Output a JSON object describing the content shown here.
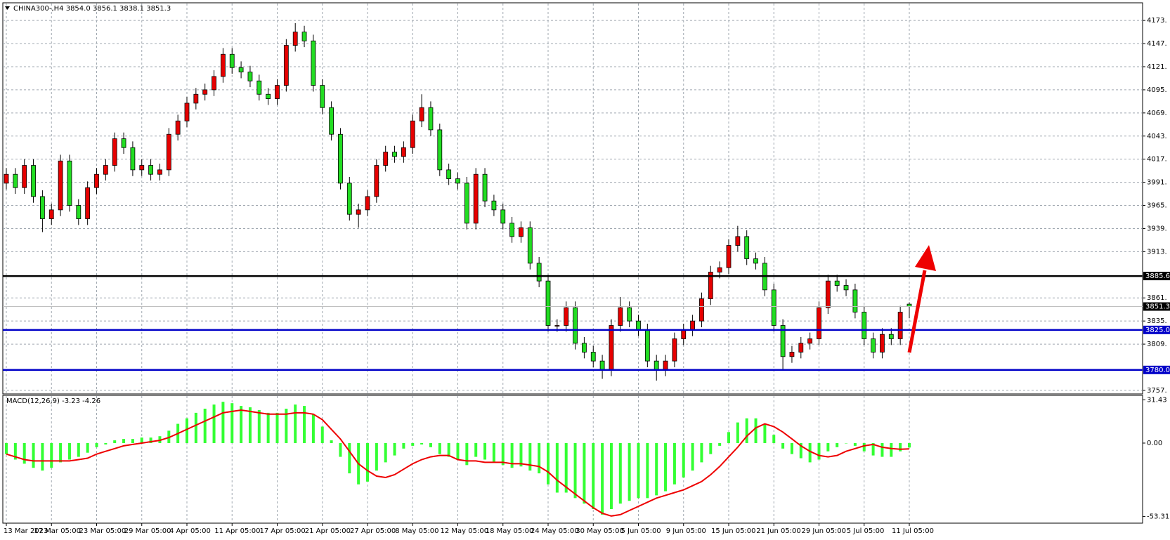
{
  "chart_data": {
    "type": "candlestick",
    "title": "CHINA300-,H4 3854.0 3856.1 3838.1 3851.3",
    "categories": [
      "13 Mar 2023",
      null,
      null,
      null,
      null,
      "17 Mar 05:00",
      null,
      null,
      null,
      null,
      "23 Mar 05:00",
      null,
      null,
      null,
      null,
      "29 Mar 05:00",
      null,
      null,
      null,
      null,
      "4 Apr 05:00",
      null,
      null,
      null,
      null,
      "11 Apr 05:00",
      null,
      null,
      null,
      null,
      "17 Apr 05:00",
      null,
      null,
      null,
      null,
      "21 Apr 05:00",
      null,
      null,
      null,
      null,
      "27 Apr 05:00",
      null,
      null,
      null,
      null,
      "8 May 05:00",
      null,
      null,
      null,
      null,
      "12 May 05:00",
      null,
      null,
      null,
      null,
      "18 May 05:00",
      null,
      null,
      null,
      null,
      "24 May 05:00",
      null,
      null,
      null,
      null,
      "30 May 05:00",
      null,
      null,
      null,
      null,
      "5 Jun 05:00",
      null,
      null,
      null,
      null,
      "9 Jun 05:00",
      null,
      null,
      null,
      null,
      "15 Jun 05:00",
      null,
      null,
      null,
      null,
      "21 Jun 05:00",
      null,
      null,
      null,
      null,
      "29 Jun 05:00",
      null,
      null,
      null,
      null,
      "5 Jul 05:00",
      null,
      null,
      null,
      null,
      "11 Jul 05:00"
    ],
    "open": [
      3990,
      4000,
      3985,
      4010,
      3975,
      3950,
      3960,
      4015,
      3965,
      3950,
      3985,
      4000,
      4010,
      4040,
      4030,
      4005,
      4010,
      4000,
      4005,
      4045,
      4060,
      4080,
      4090,
      4095,
      4110,
      4135,
      4120,
      4115,
      4105,
      4090,
      4085,
      4100,
      4145,
      4160,
      4150,
      4100,
      4075,
      4045,
      3990,
      3955,
      3960,
      3975,
      4010,
      4025,
      4020,
      4030,
      4060,
      4075,
      4050,
      4005,
      3995,
      3990,
      3945,
      4000,
      3970,
      3960,
      3945,
      3930,
      3940,
      3900,
      3880,
      3830,
      3830,
      3850,
      3810,
      3800,
      3790,
      3780,
      3830,
      3850,
      3835,
      3825,
      3790,
      3780,
      3790,
      3815,
      3825,
      3835,
      3860,
      3890,
      3895,
      3920,
      3930,
      3905,
      3900,
      3870,
      3830,
      3795,
      3800,
      3810,
      3815,
      3850,
      3880,
      3875,
      3870,
      3845,
      3815,
      3800,
      3820,
      3815,
      3854.0
    ],
    "high": [
      4007,
      4007,
      4017,
      4017,
      3982,
      3967,
      4022,
      4022,
      3972,
      3992,
      4007,
      4017,
      4047,
      4047,
      4037,
      4017,
      4017,
      4012,
      4052,
      4067,
      4087,
      4097,
      4102,
      4117,
      4142,
      4142,
      4127,
      4122,
      4112,
      4097,
      4107,
      4152,
      4170,
      4167,
      4157,
      4107,
      4082,
      4052,
      3997,
      3967,
      3982,
      4017,
      4032,
      4032,
      4037,
      4067,
      4090,
      4082,
      4057,
      4012,
      4002,
      3997,
      4007,
      4007,
      3977,
      3967,
      3952,
      3947,
      3947,
      3907,
      3887,
      3837,
      3857,
      3857,
      3817,
      3807,
      3797,
      3837,
      3862,
      3857,
      3842,
      3832,
      3797,
      3797,
      3822,
      3832,
      3842,
      3867,
      3897,
      3902,
      3927,
      3942,
      3937,
      3912,
      3907,
      3877,
      3837,
      3807,
      3817,
      3822,
      3857,
      3887,
      3887,
      3882,
      3877,
      3852,
      3822,
      3827,
      3827,
      3852,
      3856.1
    ],
    "low": [
      3983,
      3978,
      3978,
      3968,
      3935,
      3943,
      3953,
      3958,
      3943,
      3943,
      3978,
      3993,
      4003,
      4023,
      3998,
      3998,
      3993,
      3993,
      3998,
      4038,
      4053,
      4073,
      4083,
      4088,
      4103,
      4113,
      4108,
      4098,
      4083,
      4078,
      4078,
      4093,
      4138,
      4143,
      4093,
      4068,
      4038,
      3983,
      3948,
      3940,
      3953,
      3968,
      4003,
      4013,
      4013,
      4023,
      4053,
      4043,
      3998,
      3988,
      3983,
      3938,
      3938,
      3963,
      3953,
      3938,
      3923,
      3923,
      3893,
      3873,
      3823,
      3823,
      3823,
      3803,
      3793,
      3783,
      3770,
      3773,
      3823,
      3828,
      3818,
      3783,
      3768,
      3773,
      3783,
      3808,
      3818,
      3828,
      3853,
      3883,
      3888,
      3913,
      3898,
      3893,
      3863,
      3823,
      3780,
      3788,
      3793,
      3803,
      3808,
      3843,
      3868,
      3863,
      3838,
      3808,
      3793,
      3793,
      3808,
      3808,
      3838.1
    ],
    "close": [
      4000,
      3985,
      4010,
      3975,
      3950,
      3960,
      4015,
      3965,
      3950,
      3985,
      4000,
      4010,
      4040,
      4030,
      4005,
      4010,
      4000,
      4005,
      4045,
      4060,
      4080,
      4090,
      4095,
      4110,
      4135,
      4120,
      4115,
      4105,
      4090,
      4085,
      4100,
      4145,
      4160,
      4150,
      4100,
      4075,
      4045,
      3990,
      3955,
      3960,
      3975,
      4010,
      4025,
      4020,
      4030,
      4060,
      4075,
      4050,
      4005,
      3995,
      3990,
      3945,
      4000,
      3970,
      3960,
      3945,
      3930,
      3940,
      3900,
      3880,
      3830,
      3830,
      3850,
      3810,
      3800,
      3790,
      3780,
      3830,
      3850,
      3835,
      3825,
      3790,
      3780,
      3790,
      3815,
      3825,
      3835,
      3860,
      3890,
      3895,
      3920,
      3930,
      3905,
      3900,
      3870,
      3830,
      3795,
      3800,
      3810,
      3815,
      3850,
      3880,
      3875,
      3870,
      3845,
      3815,
      3800,
      3820,
      3815,
      3845,
      3851.3
    ],
    "up_color": "#e60000",
    "down_color": "#22dd22",
    "ylim": [
      3753,
      4181
    ],
    "yticks": [
      {
        "value": 4173,
        "label": "4173."
      },
      {
        "value": 4147,
        "label": "4147."
      },
      {
        "value": 4121,
        "label": "4121."
      },
      {
        "value": 4095,
        "label": "4095."
      },
      {
        "value": 4069,
        "label": "4069."
      },
      {
        "value": 4043,
        "label": "4043."
      },
      {
        "value": 4017,
        "label": "4017."
      },
      {
        "value": 3991,
        "label": "3991."
      },
      {
        "value": 3965,
        "label": "3965."
      },
      {
        "value": 3939,
        "label": "3939."
      },
      {
        "value": 3913,
        "label": "3913."
      },
      {
        "value": 3861,
        "label": "3861."
      },
      {
        "value": 3835,
        "label": "3835."
      },
      {
        "value": 3809,
        "label": "3809."
      },
      {
        "value": 3757,
        "label": "3757."
      }
    ],
    "grid": true,
    "levels": [
      {
        "value": 3885.6,
        "label": "3885.6",
        "color": "#000000"
      },
      {
        "value": 3851.3,
        "label": "3851.3",
        "color": "#c0c0c0"
      },
      {
        "value": 3825.0,
        "label": "3825.0",
        "color": "#0000c8"
      },
      {
        "value": 3780.0,
        "label": "3780.0",
        "color": "#0000c8"
      }
    ],
    "macd": {
      "title": "MACD(12,26,9) -3.23 -4.26",
      "hist_color": "#33ff33",
      "signal_color": "#ee0000",
      "ylim": [
        -58.2,
        34.7
      ],
      "yticks": [
        31.43,
        {
          "value": 0,
          "label": "0.00"
        },
        -53.31
      ],
      "histogram": [
        -8,
        -12,
        -15,
        -18,
        -20,
        -18,
        -14,
        -12,
        -10,
        -7,
        -3,
        -1,
        2,
        3,
        3,
        4,
        4,
        5,
        9,
        14,
        18,
        22,
        25,
        28,
        30,
        29,
        27,
        26,
        24,
        22,
        22,
        25,
        28,
        27,
        21,
        12,
        2,
        -10,
        -22,
        -30,
        -28,
        -20,
        -14,
        -9,
        -4,
        -2,
        -1,
        -3,
        -8,
        -10,
        -12,
        -16,
        -10,
        -12,
        -14,
        -16,
        -18,
        -17,
        -20,
        -22,
        -30,
        -36,
        -36,
        -40,
        -44,
        -48,
        -52,
        -48,
        -44,
        -42,
        -40,
        -40,
        -38,
        -35,
        -30,
        -25,
        -20,
        -14,
        -8,
        -2,
        8,
        15,
        18,
        18,
        14,
        6,
        -4,
        -8,
        -11,
        -14,
        -12,
        -6,
        -3,
        0,
        -2,
        -6,
        -9,
        -10,
        -10,
        -6,
        -3.23
      ],
      "signal": [
        -8,
        -10,
        -12,
        -13,
        -13,
        -13,
        -13,
        -13,
        -12,
        -11,
        -8,
        -6,
        -4,
        -2,
        -1,
        0,
        1,
        2,
        4,
        7,
        10,
        13,
        16,
        19,
        22,
        23,
        24,
        23,
        22,
        21,
        21,
        21,
        22,
        22,
        21,
        17,
        10,
        3,
        -6,
        -15,
        -20,
        -24,
        -25,
        -23,
        -19,
        -15,
        -12,
        -10,
        -9,
        -9,
        -12,
        -13,
        -13,
        -14,
        -14,
        -14,
        -15,
        -15,
        -16,
        -17,
        -21,
        -27,
        -32,
        -37,
        -42,
        -47,
        -51,
        -53,
        -52,
        -49,
        -46,
        -43,
        -40,
        -38,
        -36,
        -34,
        -31,
        -28,
        -23,
        -17,
        -10,
        -3,
        5,
        11,
        14,
        12,
        8,
        3,
        -2,
        -6,
        -9,
        -10,
        -9,
        -6,
        -4,
        -2,
        -1,
        -3,
        -4,
        -4.5,
        -4.26
      ]
    }
  }
}
